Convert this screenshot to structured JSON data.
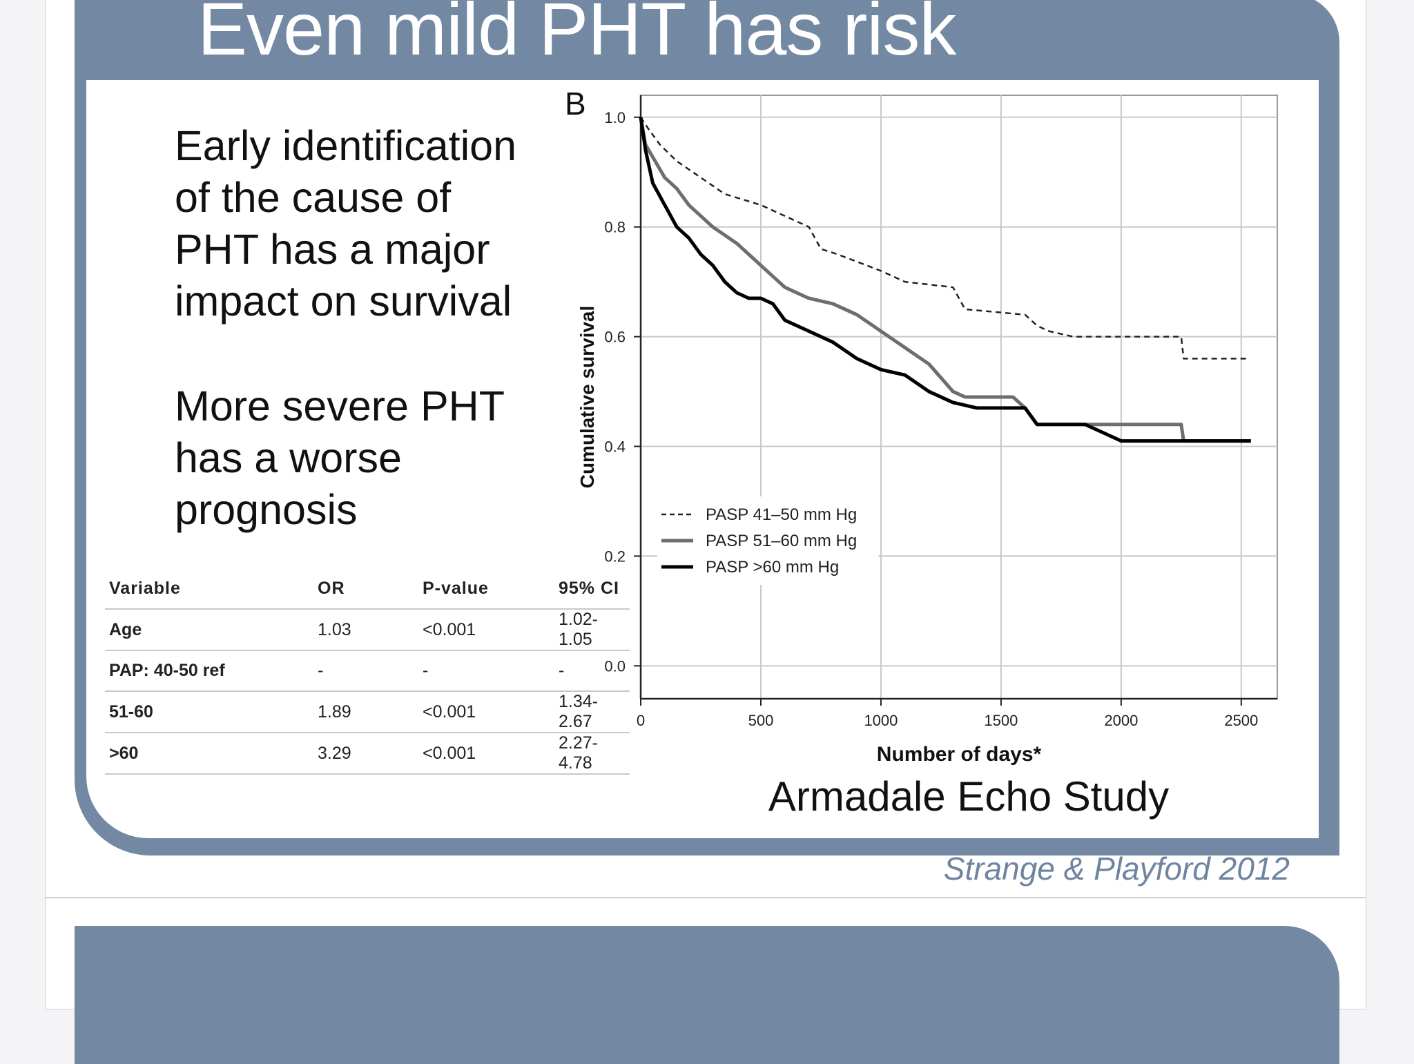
{
  "slide": {
    "title": "Even mild PHT has risk",
    "bullets": [
      [
        "Early identification",
        "of the cause of",
        "PHT has a major",
        "impact on survival"
      ],
      [
        "More severe PHT",
        "has a worse",
        "prognosis"
      ]
    ],
    "study_caption": "Armadale Echo Study",
    "citation": "Strange & Playford 2012"
  },
  "or_table": {
    "headers": [
      "Variable",
      "OR",
      "P-value",
      "95% CI"
    ],
    "rows": [
      [
        "Age",
        "1.03",
        "<0.001",
        "1.02-1.05"
      ],
      [
        "PAP: 40-50 ref",
        "-",
        "-",
        "-"
      ],
      [
        "51-60",
        "1.89",
        "<0.001",
        "1.34-2.67"
      ],
      [
        ">60",
        "3.29",
        "<0.001",
        "2.27-4.78"
      ]
    ]
  },
  "chart_data": {
    "type": "line",
    "panel_label": "B",
    "xlabel": "Number of days*",
    "ylabel": "Cumulative survival",
    "xlim": [
      0,
      2650
    ],
    "ylim": [
      -0.06,
      1.04
    ],
    "xticks": [
      0,
      500,
      1000,
      1500,
      2000,
      2500
    ],
    "yticks": [
      0.0,
      0.2,
      0.4,
      0.6,
      0.8,
      1.0
    ],
    "ytick_labels": [
      "0.0",
      "0.2",
      "0.4",
      "0.6",
      "0.8",
      "1.0"
    ],
    "grid": true,
    "legend_position": "bottom-left",
    "series": [
      {
        "name": "PASP 41–50 mm Hg",
        "style": "dashed",
        "color": "#222222",
        "x": [
          0,
          30,
          80,
          150,
          250,
          350,
          500,
          600,
          700,
          750,
          820,
          1000,
          1100,
          1300,
          1350,
          1600,
          1650,
          1700,
          1800,
          2000,
          2250,
          2260,
          2520
        ],
        "y": [
          1.0,
          0.98,
          0.95,
          0.92,
          0.89,
          0.86,
          0.84,
          0.82,
          0.8,
          0.76,
          0.75,
          0.72,
          0.7,
          0.69,
          0.65,
          0.64,
          0.62,
          0.61,
          0.6,
          0.6,
          0.6,
          0.56,
          0.56
        ]
      },
      {
        "name": "PASP 51–60 mm Hg",
        "style": "solid",
        "color": "#6e6e6e",
        "x": [
          0,
          20,
          60,
          100,
          150,
          200,
          300,
          400,
          500,
          600,
          700,
          800,
          900,
          1000,
          1100,
          1200,
          1300,
          1350,
          1550,
          1600,
          1650,
          2000,
          2250,
          2260,
          2540
        ],
        "y": [
          1.0,
          0.95,
          0.92,
          0.89,
          0.87,
          0.84,
          0.8,
          0.77,
          0.73,
          0.69,
          0.67,
          0.66,
          0.64,
          0.61,
          0.58,
          0.55,
          0.5,
          0.49,
          0.49,
          0.47,
          0.44,
          0.44,
          0.44,
          0.41,
          0.41
        ]
      },
      {
        "name": "PASP >60 mm Hg",
        "style": "solid",
        "color": "#000000",
        "x": [
          0,
          20,
          50,
          100,
          150,
          200,
          250,
          300,
          350,
          400,
          450,
          500,
          550,
          600,
          700,
          800,
          900,
          1000,
          1100,
          1200,
          1300,
          1400,
          1600,
          1650,
          1850,
          1950,
          2000,
          2540
        ],
        "y": [
          1.0,
          0.94,
          0.88,
          0.84,
          0.8,
          0.78,
          0.75,
          0.73,
          0.7,
          0.68,
          0.67,
          0.67,
          0.66,
          0.63,
          0.61,
          0.59,
          0.56,
          0.54,
          0.53,
          0.5,
          0.48,
          0.47,
          0.47,
          0.44,
          0.44,
          0.42,
          0.41,
          0.41
        ]
      }
    ]
  }
}
